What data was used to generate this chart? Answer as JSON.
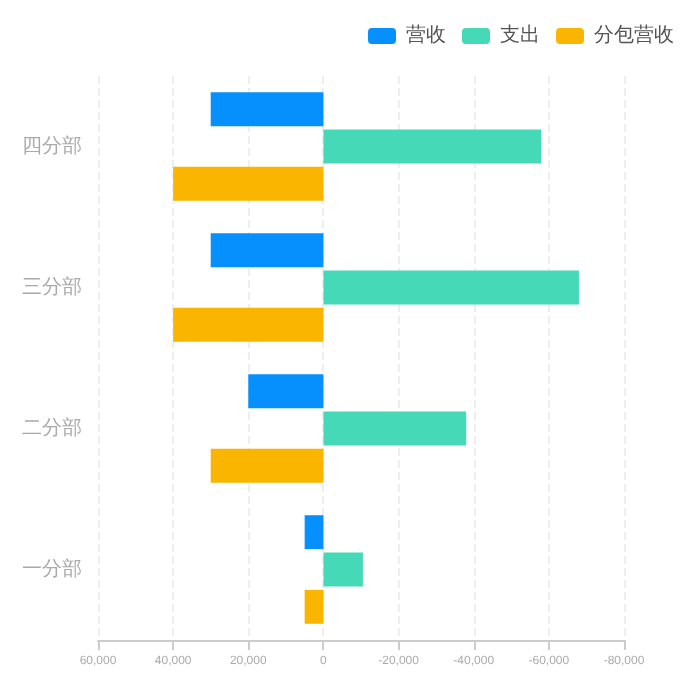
{
  "chart_data": {
    "type": "bar",
    "orientation": "horizontal",
    "categories": [
      "四分部",
      "三分部",
      "二分部",
      "一分部"
    ],
    "series": [
      {
        "name": "营收",
        "color": "#0690fd",
        "values": [
          30000,
          30000,
          20000,
          5000
        ]
      },
      {
        "name": "支出",
        "color": "#45d9b7",
        "values": [
          -58000,
          -68000,
          -38000,
          -10500
        ]
      },
      {
        "name": "分包营收",
        "color": "#f9b500",
        "values": [
          40000,
          40000,
          30000,
          5000
        ]
      }
    ],
    "xlim": [
      60000,
      -80000
    ],
    "xticks": [
      {
        "value": 60000,
        "label": "60,000"
      },
      {
        "value": 40000,
        "label": "40,000"
      },
      {
        "value": 20000,
        "label": "20,000"
      },
      0,
      {
        "value": -20000,
        "label": "-20,000"
      },
      {
        "value": -40000,
        "label": "-40,000"
      },
      {
        "value": -60000,
        "label": "-60,000"
      },
      {
        "value": -80000,
        "label": "-80,000"
      }
    ],
    "grid": "x",
    "legend": "top right"
  }
}
